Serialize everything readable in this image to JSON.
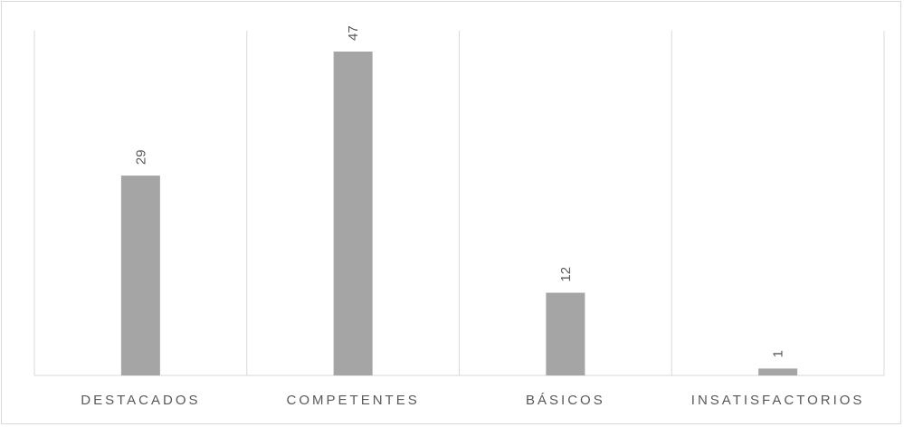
{
  "chart_data": {
    "type": "bar",
    "categories": [
      "DESTACADOS",
      "COMPETENTES",
      "BÁSICOS",
      "INSATISFACTORIOS"
    ],
    "values": [
      29,
      47,
      12,
      1
    ],
    "data_labels": [
      "29",
      "47",
      "12",
      "1"
    ],
    "ylim": [
      0,
      50
    ],
    "grid": "vertical category separators",
    "legend": "none",
    "bar_color": "#a5a5a5",
    "grid_color": "#d9d9d9",
    "label_color": "#595959"
  }
}
